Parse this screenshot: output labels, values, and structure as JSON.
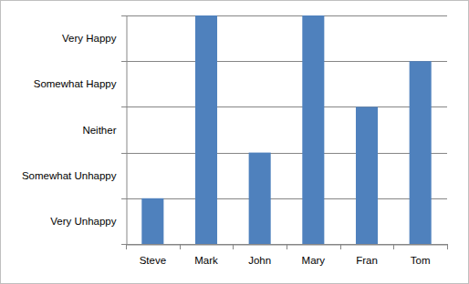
{
  "chart_data": {
    "type": "bar",
    "categories": [
      "Steve",
      "Mark",
      "John",
      "Mary",
      "Fran",
      "Tom"
    ],
    "values": [
      1,
      5,
      2,
      5,
      3,
      4
    ],
    "color": "#4f81bd",
    "ylim": [
      0,
      5
    ],
    "yticks": [
      {
        "value": 0.5,
        "label": "Very Unhappy"
      },
      {
        "value": 1.5,
        "label": "Somewhat Unhappy"
      },
      {
        "value": 2.5,
        "label": "Neither"
      },
      {
        "value": 3.5,
        "label": "Somewhat Happy"
      },
      {
        "value": 4.5,
        "label": "Very Happy"
      }
    ],
    "grid": true
  }
}
